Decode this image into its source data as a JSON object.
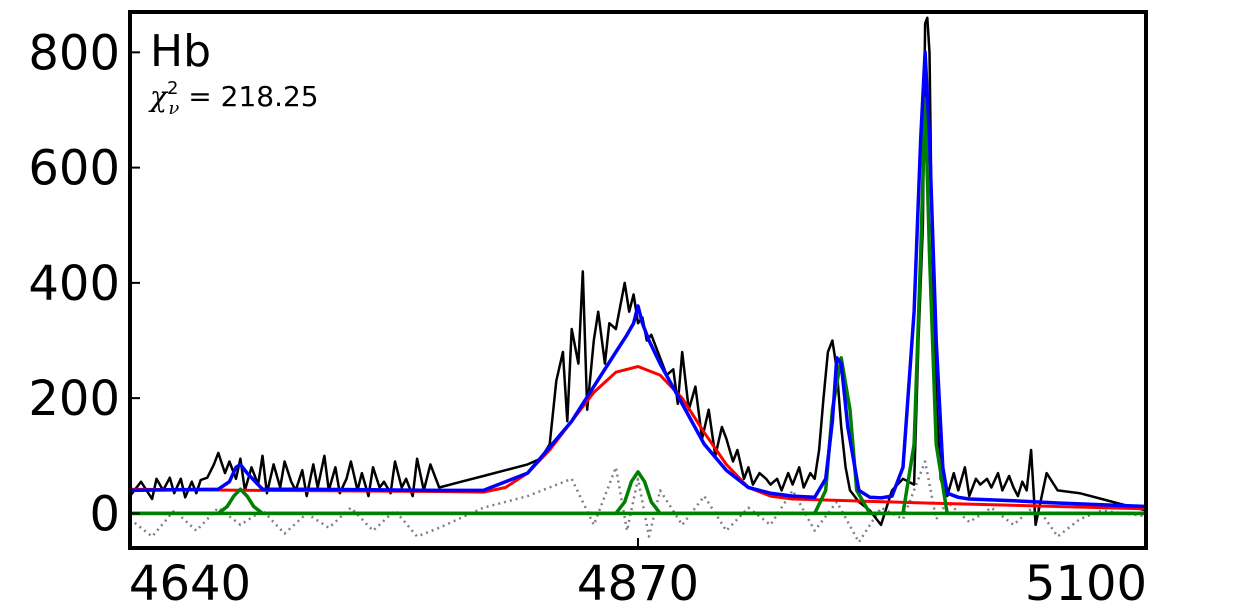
{
  "chart_data": {
    "type": "line",
    "title": "Hb",
    "annotation": {
      "prefix": "χ",
      "superscript": "2",
      "subscript": "ν",
      "equals": " = ",
      "value": "218.25"
    },
    "xlabel": "",
    "ylabel": "",
    "xlim": [
      4640,
      5100
    ],
    "ylim": [
      -60,
      870
    ],
    "x_ticks": [
      4640,
      4870,
      5100
    ],
    "x_tick_labels": [
      "4640",
      "4870",
      "5100"
    ],
    "y_ticks": [
      0,
      200,
      400,
      600,
      800
    ],
    "y_tick_labels": [
      "0",
      "200",
      "400",
      "600",
      "800"
    ],
    "grid": false,
    "legend": "none",
    "colors": {
      "data": "#000000",
      "total_model": "#0000ff",
      "broad_component": "#ff0000",
      "narrow_components": "#008000",
      "residual": "#808080"
    },
    "series": [
      {
        "role": "data",
        "style": "solid",
        "x": [
          4640,
          4645,
          4650,
          4652,
          4655,
          4658,
          4660,
          4663,
          4665,
          4668,
          4670,
          4672,
          4675,
          4678,
          4680,
          4683,
          4685,
          4688,
          4690,
          4692,
          4695,
          4698,
          4700,
          4702,
          4705,
          4708,
          4710,
          4713,
          4715,
          4718,
          4720,
          4723,
          4725,
          4728,
          4730,
          4733,
          4735,
          4738,
          4740,
          4743,
          4745,
          4748,
          4750,
          4753,
          4755,
          4758,
          4760,
          4763,
          4765,
          4768,
          4770,
          4773,
          4776,
          4780,
          4790,
          4800,
          4810,
          4820,
          4826,
          4830,
          4833,
          4836,
          4838,
          4840,
          4843,
          4845,
          4847,
          4850,
          4852,
          4855,
          4857,
          4860,
          4862,
          4864,
          4866,
          4868,
          4870,
          4872,
          4874,
          4876,
          4878,
          4880,
          4883,
          4886,
          4888,
          4890,
          4893,
          4896,
          4899,
          4902,
          4905,
          4908,
          4910,
          4913,
          4915,
          4918,
          4920,
          4922,
          4925,
          4928,
          4930,
          4933,
          4935,
          4938,
          4940,
          4943,
          4945,
          4948,
          4950,
          4952,
          4954,
          4956,
          4958,
          4960,
          4962,
          4964,
          4966,
          4970,
          4975,
          4980,
          4985,
          4990,
          4995,
          4997,
          4999,
          5000,
          5001,
          5002,
          5003,
          5005,
          5007,
          5010,
          5013,
          5015,
          5018,
          5020,
          5023,
          5025,
          5028,
          5030,
          5033,
          5035,
          5038,
          5040,
          5042,
          5044,
          5046,
          5048,
          5050,
          5055,
          5060,
          5070,
          5080,
          5090,
          5100
        ],
        "y": [
          30,
          55,
          25,
          60,
          40,
          62,
          35,
          60,
          28,
          55,
          35,
          58,
          62,
          85,
          105,
          70,
          90,
          60,
          95,
          40,
          80,
          50,
          100,
          35,
          85,
          45,
          90,
          55,
          40,
          75,
          30,
          85,
          45,
          100,
          40,
          80,
          35,
          60,
          90,
          40,
          70,
          30,
          80,
          45,
          55,
          35,
          90,
          45,
          60,
          30,
          95,
          40,
          85,
          45,
          55,
          65,
          75,
          85,
          95,
          120,
          230,
          280,
          160,
          320,
          260,
          420,
          180,
          300,
          350,
          260,
          330,
          320,
          360,
          400,
          350,
          380,
          330,
          340,
          300,
          310,
          290,
          270,
          240,
          250,
          190,
          280,
          180,
          220,
          130,
          180,
          100,
          150,
          130,
          90,
          110,
          60,
          80,
          50,
          70,
          60,
          50,
          60,
          40,
          70,
          50,
          80,
          45,
          70,
          60,
          110,
          200,
          280,
          300,
          250,
          150,
          80,
          40,
          20,
          5,
          -20,
          40,
          60,
          50,
          300,
          500,
          850,
          860,
          800,
          500,
          200,
          60,
          30,
          70,
          40,
          80,
          30,
          60,
          50,
          60,
          45,
          70,
          40,
          65,
          45,
          30,
          55,
          40,
          110,
          -20,
          70,
          40,
          35,
          25,
          15,
          5
        ]
      },
      {
        "role": "residual",
        "style": "dotted",
        "x": [
          4640,
          4650,
          4660,
          4670,
          4680,
          4690,
          4700,
          4710,
          4720,
          4730,
          4740,
          4750,
          4760,
          4770,
          4780,
          4800,
          4820,
          4840,
          4850,
          4860,
          4865,
          4870,
          4875,
          4880,
          4890,
          4900,
          4910,
          4920,
          4930,
          4940,
          4950,
          4960,
          4970,
          4980,
          4990,
          5000,
          5005,
          5010,
          5020,
          5030,
          5040,
          5050,
          5060,
          5070,
          5080,
          5090,
          5100
        ],
        "y": [
          -10,
          -40,
          5,
          -30,
          10,
          -20,
          5,
          -35,
          0,
          -25,
          10,
          -30,
          5,
          -40,
          -25,
          10,
          30,
          60,
          -20,
          80,
          -30,
          60,
          -40,
          40,
          -20,
          30,
          -30,
          10,
          -20,
          40,
          -30,
          20,
          -50,
          10,
          -10,
          90,
          -10,
          20,
          -15,
          10,
          -20,
          15,
          -40,
          -10,
          5,
          0,
          -5
        ]
      },
      {
        "role": "total_model",
        "style": "solid",
        "x": [
          4640,
          4660,
          4680,
          4685,
          4688,
          4690,
          4693,
          4700,
          4720,
          4750,
          4780,
          4800,
          4820,
          4840,
          4850,
          4860,
          4865,
          4868,
          4870,
          4872,
          4875,
          4880,
          4890,
          4900,
          4910,
          4920,
          4930,
          4940,
          4950,
          4955,
          4958,
          4960,
          4962,
          4965,
          4970,
          4975,
          4980,
          4985,
          4990,
          4995,
          4998,
          5000,
          5002,
          5005,
          5008,
          5010,
          5015,
          5020,
          5040,
          5060,
          5080,
          5100
        ],
        "y": [
          40,
          41,
          42,
          55,
          80,
          85,
          70,
          42,
          42,
          41,
          40,
          40,
          70,
          160,
          220,
          280,
          310,
          330,
          360,
          330,
          300,
          260,
          190,
          120,
          75,
          45,
          35,
          30,
          28,
          60,
          160,
          270,
          260,
          150,
          40,
          28,
          27,
          30,
          80,
          350,
          650,
          800,
          650,
          300,
          80,
          35,
          28,
          25,
          22,
          18,
          15,
          12
        ]
      },
      {
        "role": "broad_component",
        "style": "solid",
        "x": [
          4640,
          4700,
          4780,
          4800,
          4810,
          4820,
          4830,
          4840,
          4850,
          4860,
          4870,
          4880,
          4890,
          4900,
          4910,
          4920,
          4930,
          4940,
          5000,
          5060,
          5100
        ],
        "y": [
          42,
          40,
          38,
          37,
          45,
          70,
          110,
          160,
          210,
          245,
          255,
          240,
          200,
          140,
          85,
          45,
          30,
          25,
          18,
          12,
          8
        ]
      },
      {
        "role": "narrow_components",
        "style": "solid",
        "x": [
          4640,
          4680,
          4684,
          4687,
          4690,
          4693,
          4696,
          4700,
          4860,
          4864,
          4867,
          4870,
          4873,
          4876,
          4880,
          4950,
          4955,
          4958,
          4962,
          4966,
          4969,
          4975,
          4990,
          4995,
          4998,
          5000,
          5002,
          5005,
          5010,
          5100
        ],
        "y": [
          0,
          0,
          12,
          30,
          42,
          30,
          12,
          0,
          0,
          20,
          55,
          72,
          55,
          20,
          0,
          0,
          40,
          180,
          270,
          180,
          40,
          0,
          0,
          120,
          450,
          720,
          450,
          120,
          0,
          0
        ]
      }
    ]
  }
}
